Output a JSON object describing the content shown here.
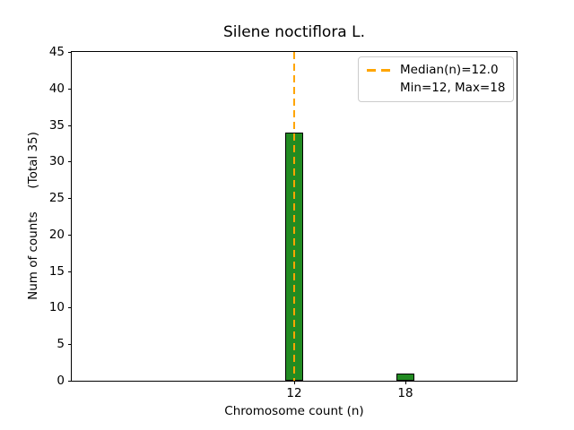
{
  "chart_data": {
    "type": "bar",
    "title": "Silene noctiflora L.",
    "xlabel": "Chromosome count (n)",
    "ylabel": "Num of counts      (Total 35)",
    "categories": [
      12,
      18
    ],
    "values": [
      34,
      1
    ],
    "xticks": [
      "12",
      "18"
    ],
    "yticks": [
      0,
      5,
      10,
      15,
      20,
      25,
      30,
      35,
      40,
      45
    ],
    "xlim": [
      0,
      24
    ],
    "ylim": [
      0,
      45
    ],
    "bar_width_data": 1,
    "bar_color": "#228B22",
    "bar_edge_color": "#000000",
    "grid": false,
    "median_line": {
      "x": 12,
      "color": "#FFA500",
      "style": "dashed"
    },
    "legend": {
      "position": "upper right",
      "entries": [
        {
          "label": "Median(n)=12.0",
          "swatch": "orange-dashed-line"
        },
        {
          "label": "Min=12, Max=18",
          "swatch": "none"
        }
      ]
    },
    "stats": {
      "total": 35,
      "median": 12.0,
      "min": 12,
      "max": 18
    }
  }
}
